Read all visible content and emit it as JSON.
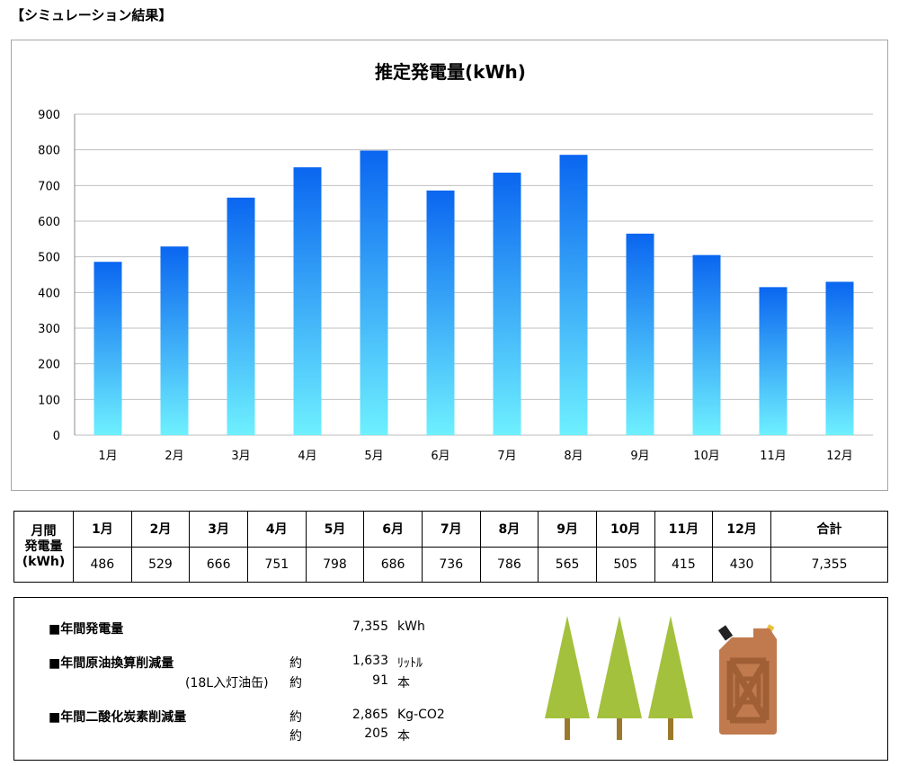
{
  "heading": "【シミュレーション結果】",
  "chart_data": {
    "type": "bar",
    "title": "推定発電量(kWh)",
    "categories": [
      "1月",
      "2月",
      "3月",
      "4月",
      "5月",
      "6月",
      "7月",
      "8月",
      "9月",
      "10月",
      "11月",
      "12月"
    ],
    "values": [
      486,
      529,
      666,
      751,
      798,
      686,
      736,
      786,
      565,
      505,
      415,
      430
    ],
    "ylim": [
      0,
      900
    ],
    "yticks": [
      0,
      100,
      200,
      300,
      400,
      500,
      600,
      700,
      800,
      900
    ],
    "grid": true,
    "colors": {
      "bar_top": "#0a66f0",
      "bar_bottom": "#6ef0ff",
      "grid": "#bfbfbf"
    }
  },
  "table": {
    "row_header": [
      "月間",
      "発電量",
      "(kWh)"
    ],
    "months": [
      "1月",
      "2月",
      "3月",
      "4月",
      "5月",
      "6月",
      "7月",
      "8月",
      "9月",
      "10月",
      "11月",
      "12月"
    ],
    "values": [
      "486",
      "529",
      "666",
      "751",
      "798",
      "686",
      "736",
      "786",
      "565",
      "505",
      "415",
      "430"
    ],
    "total_label": "合計",
    "total_value": "7,355"
  },
  "summary": {
    "annual_generation": {
      "label": "■年間発電量",
      "value": "7,355",
      "unit": "kWh"
    },
    "oil": {
      "label": "■年間原油換算削減量",
      "approx": "約",
      "value": "1,633",
      "unit": "ﾘｯﾄﾙ",
      "sub_label": "(18L入灯油缶)",
      "sub_approx": "約",
      "sub_value": "91",
      "sub_unit": "本"
    },
    "co2": {
      "label": "■年間二酸化炭素削減量",
      "approx": "約",
      "value": "2,865",
      "unit": "Kg-CO2",
      "sub_approx": "約",
      "sub_value": "205",
      "sub_unit": "本"
    },
    "icons": [
      "tree-icon",
      "tree-icon",
      "tree-icon",
      "fuel-can-icon"
    ]
  }
}
